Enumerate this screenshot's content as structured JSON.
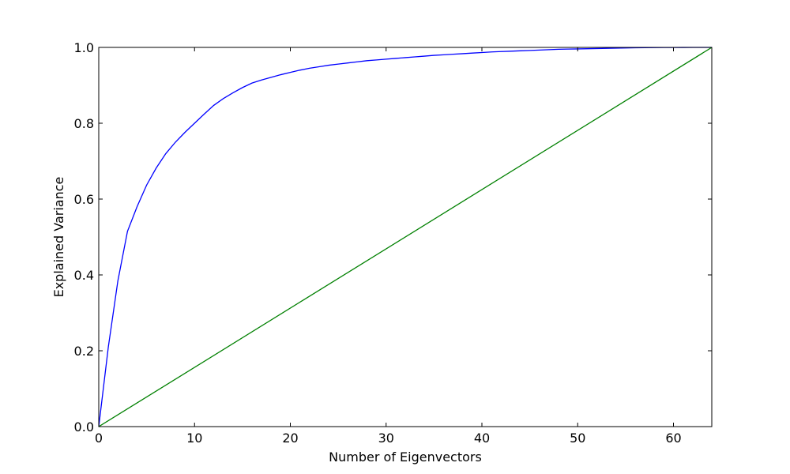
{
  "chart_data": {
    "type": "line",
    "title": "",
    "xlabel": "Number of Eigenvectors",
    "ylabel": "Explained Variance",
    "xlim": [
      0,
      64
    ],
    "ylim": [
      0.0,
      1.0
    ],
    "grid": false,
    "xticks": [
      0,
      10,
      20,
      30,
      40,
      50,
      60
    ],
    "xtick_labels": [
      "0",
      "10",
      "20",
      "30",
      "40",
      "50",
      "60"
    ],
    "yticks": [
      0.0,
      0.2,
      0.4,
      0.6,
      0.8,
      1.0
    ],
    "ytick_labels": [
      "0.0",
      "0.2",
      "0.4",
      "0.6",
      "0.8",
      "1.0"
    ],
    "series": [
      {
        "color": "#0000ff",
        "x": [
          0,
          1,
          2,
          3,
          4,
          5,
          6,
          7,
          8,
          9,
          10,
          11,
          12,
          13,
          14,
          15,
          16,
          17,
          18,
          19,
          20,
          21,
          22,
          23,
          24,
          25,
          26,
          27,
          28,
          29,
          30,
          31,
          32,
          33,
          34,
          35,
          36,
          37,
          38,
          39,
          40,
          41,
          42,
          43,
          44,
          45,
          46,
          47,
          48,
          49,
          50,
          51,
          52,
          53,
          54,
          55,
          56,
          57,
          58,
          59,
          60,
          61,
          62,
          63,
          64
        ],
        "y": [
          0.0,
          0.21,
          0.385,
          0.515,
          0.58,
          0.637,
          0.682,
          0.72,
          0.75,
          0.776,
          0.8,
          0.824,
          0.847,
          0.865,
          0.88,
          0.894,
          0.906,
          0.914,
          0.921,
          0.928,
          0.934,
          0.94,
          0.945,
          0.949,
          0.953,
          0.956,
          0.959,
          0.962,
          0.965,
          0.967,
          0.969,
          0.971,
          0.973,
          0.975,
          0.977,
          0.979,
          0.9805,
          0.982,
          0.9835,
          0.985,
          0.9865,
          0.988,
          0.989,
          0.99,
          0.991,
          0.992,
          0.993,
          0.994,
          0.995,
          0.9955,
          0.996,
          0.9965,
          0.997,
          0.9975,
          0.998,
          0.9985,
          0.999,
          0.9992,
          0.9995,
          0.9997,
          0.9998,
          0.9999,
          1.0,
          1.0,
          1.0
        ]
      },
      {
        "color": "#008000",
        "x": [
          0,
          64
        ],
        "y": [
          0.0,
          1.0
        ]
      }
    ]
  }
}
